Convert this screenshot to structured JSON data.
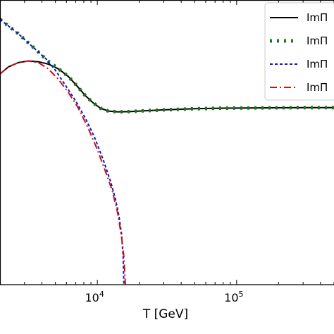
{
  "chart_data": {
    "type": "line",
    "title": "",
    "xlabel": "T [GeV]",
    "ylabel": "",
    "xscale": "log",
    "xlim": [
      2000,
      500000
    ],
    "ylim": [
      0,
      1
    ],
    "grid": false,
    "legend_position": "top-right",
    "x_tick_labels": [
      {
        "value": 10000,
        "base": "10",
        "exp": "4"
      },
      {
        "value": 100000,
        "base": "10",
        "exp": "5"
      }
    ],
    "series": [
      {
        "name": "ImΠ",
        "color": "#000000",
        "style": "solid",
        "points": [
          [
            2000,
            0.74
          ],
          [
            2300,
            0.765
          ],
          [
            2700,
            0.78
          ],
          [
            3200,
            0.786
          ],
          [
            3800,
            0.783
          ],
          [
            4500,
            0.774
          ],
          [
            5300,
            0.757
          ],
          [
            6200,
            0.731
          ],
          [
            7200,
            0.696
          ],
          [
            8200,
            0.664
          ],
          [
            9200,
            0.641
          ],
          [
            10500,
            0.62
          ],
          [
            12000,
            0.61
          ],
          [
            14000,
            0.607
          ],
          [
            17000,
            0.608
          ],
          [
            20000,
            0.61
          ],
          [
            30000,
            0.614
          ],
          [
            50000,
            0.618
          ],
          [
            80000,
            0.62
          ],
          [
            150000,
            0.621
          ],
          [
            300000,
            0.622
          ],
          [
            500000,
            0.622
          ]
        ]
      },
      {
        "name": "ImΠ",
        "color": "#1a7a1a",
        "style": "dotted",
        "points": [
          [
            2000,
            0.932
          ],
          [
            2700,
            0.882
          ],
          [
            3500,
            0.832
          ],
          [
            4500,
            0.783
          ],
          [
            5300,
            0.757
          ],
          [
            6200,
            0.731
          ],
          [
            7200,
            0.696
          ],
          [
            8200,
            0.664
          ],
          [
            9200,
            0.641
          ],
          [
            10500,
            0.62
          ],
          [
            12000,
            0.61
          ],
          [
            14000,
            0.607
          ],
          [
            17000,
            0.608
          ],
          [
            20000,
            0.61
          ],
          [
            30000,
            0.614
          ],
          [
            50000,
            0.618
          ],
          [
            80000,
            0.62
          ],
          [
            150000,
            0.621
          ],
          [
            300000,
            0.622
          ],
          [
            500000,
            0.622
          ]
        ]
      },
      {
        "name": "ImΠ",
        "color": "#1111cc",
        "style": "dashed",
        "points": [
          [
            2000,
            0.932
          ],
          [
            2700,
            0.882
          ],
          [
            3500,
            0.832
          ],
          [
            4300,
            0.792
          ],
          [
            5000,
            0.753
          ],
          [
            6000,
            0.695
          ],
          [
            7000,
            0.645
          ],
          [
            8200,
            0.585
          ],
          [
            9500,
            0.52
          ],
          [
            11000,
            0.44
          ],
          [
            12500,
            0.36
          ],
          [
            13500,
            0.3
          ],
          [
            14300,
            0.24
          ],
          [
            14900,
            0.18
          ],
          [
            15300,
            0.1
          ],
          [
            15500,
            0.0
          ]
        ]
      },
      {
        "name": "ImΠ",
        "color": "#cc1111",
        "style": "dashdot",
        "points": [
          [
            2000,
            0.74
          ],
          [
            2300,
            0.765
          ],
          [
            2700,
            0.78
          ],
          [
            3200,
            0.786
          ],
          [
            3800,
            0.779
          ],
          [
            4400,
            0.76
          ],
          [
            5200,
            0.724
          ],
          [
            6100,
            0.68
          ],
          [
            7200,
            0.625
          ],
          [
            8500,
            0.555
          ],
          [
            9800,
            0.485
          ],
          [
            11200,
            0.41
          ],
          [
            12800,
            0.33
          ],
          [
            14000,
            0.25
          ],
          [
            14900,
            0.17
          ],
          [
            15500,
            0.1
          ],
          [
            15900,
            0.0
          ]
        ]
      }
    ]
  }
}
